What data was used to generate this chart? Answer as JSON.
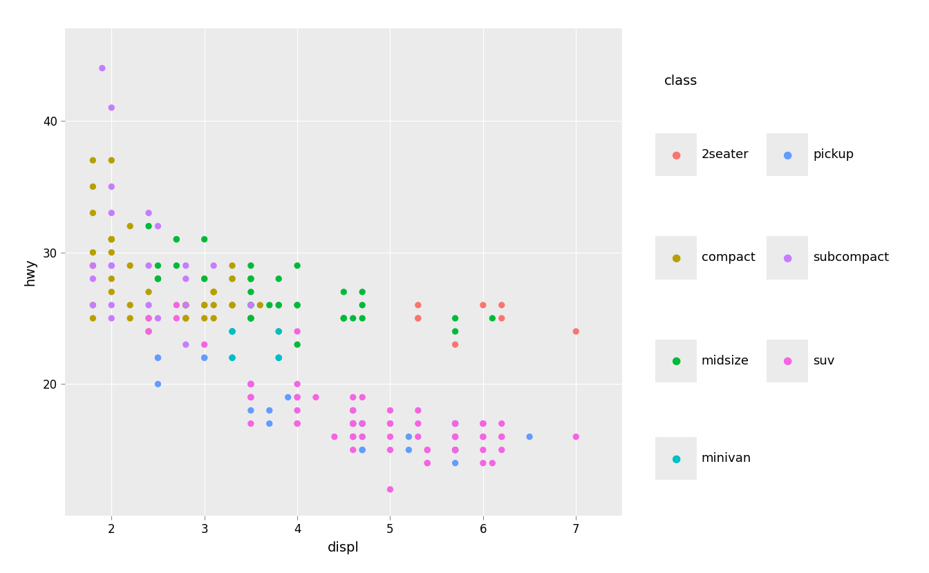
{
  "title": "class",
  "xlabel": "displ",
  "ylabel": "hwy",
  "background_color": "#EBEBEB",
  "grid_color": "#FFFFFF",
  "colors": {
    "2seater": "#F8766D",
    "compact": "#B79F00",
    "midsize": "#00BA38",
    "minivan": "#00BFC4",
    "pickup": "#619CFF",
    "subcompact": "#C77CFF",
    "suv": "#F564E3"
  },
  "data": [
    {
      "displ": 1.8,
      "hwy": 29,
      "class": "compact"
    },
    {
      "displ": 1.8,
      "hwy": 29,
      "class": "compact"
    },
    {
      "displ": 2.0,
      "hwy": 31,
      "class": "compact"
    },
    {
      "displ": 2.0,
      "hwy": 30,
      "class": "compact"
    },
    {
      "displ": 2.8,
      "hwy": 26,
      "class": "compact"
    },
    {
      "displ": 2.8,
      "hwy": 26,
      "class": "compact"
    },
    {
      "displ": 3.1,
      "hwy": 27,
      "class": "compact"
    },
    {
      "displ": 1.8,
      "hwy": 26,
      "class": "compact"
    },
    {
      "displ": 1.8,
      "hwy": 25,
      "class": "compact"
    },
    {
      "displ": 2.0,
      "hwy": 28,
      "class": "compact"
    },
    {
      "displ": 2.0,
      "hwy": 27,
      "class": "compact"
    },
    {
      "displ": 2.8,
      "hwy": 25,
      "class": "compact"
    },
    {
      "displ": 2.8,
      "hwy": 25,
      "class": "compact"
    },
    {
      "displ": 3.1,
      "hwy": 25,
      "class": "compact"
    },
    {
      "displ": 3.1,
      "hwy": 27,
      "class": "compact"
    },
    {
      "displ": 2.2,
      "hwy": 32,
      "class": "compact"
    },
    {
      "displ": 2.2,
      "hwy": 29,
      "class": "compact"
    },
    {
      "displ": 2.4,
      "hwy": 24,
      "class": "compact"
    },
    {
      "displ": 2.4,
      "hwy": 24,
      "class": "compact"
    },
    {
      "displ": 3.0,
      "hwy": 26,
      "class": "compact"
    },
    {
      "displ": 3.0,
      "hwy": 26,
      "class": "compact"
    },
    {
      "displ": 3.3,
      "hwy": 28,
      "class": "compact"
    },
    {
      "displ": 3.3,
      "hwy": 26,
      "class": "compact"
    },
    {
      "displ": 3.3,
      "hwy": 29,
      "class": "compact"
    },
    {
      "displ": 3.3,
      "hwy": 28,
      "class": "compact"
    },
    {
      "displ": 3.6,
      "hwy": 26,
      "class": "compact"
    },
    {
      "displ": 1.8,
      "hwy": 37,
      "class": "compact"
    },
    {
      "displ": 1.8,
      "hwy": 35,
      "class": "compact"
    },
    {
      "displ": 2.0,
      "hwy": 37,
      "class": "compact"
    },
    {
      "displ": 2.0,
      "hwy": 31,
      "class": "compact"
    },
    {
      "displ": 2.8,
      "hwy": 26,
      "class": "compact"
    },
    {
      "displ": 2.8,
      "hwy": 26,
      "class": "compact"
    },
    {
      "displ": 3.1,
      "hwy": 26,
      "class": "compact"
    },
    {
      "displ": 1.8,
      "hwy": 33,
      "class": "compact"
    },
    {
      "displ": 1.8,
      "hwy": 30,
      "class": "compact"
    },
    {
      "displ": 2.0,
      "hwy": 31,
      "class": "compact"
    },
    {
      "displ": 2.0,
      "hwy": 31,
      "class": "compact"
    },
    {
      "displ": 2.8,
      "hwy": 26,
      "class": "compact"
    },
    {
      "displ": 2.8,
      "hwy": 25,
      "class": "compact"
    },
    {
      "displ": 3.1,
      "hwy": 27,
      "class": "compact"
    },
    {
      "displ": 2.2,
      "hwy": 26,
      "class": "compact"
    },
    {
      "displ": 2.2,
      "hwy": 25,
      "class": "compact"
    },
    {
      "displ": 2.4,
      "hwy": 25,
      "class": "compact"
    },
    {
      "displ": 2.4,
      "hwy": 27,
      "class": "compact"
    },
    {
      "displ": 3.0,
      "hwy": 25,
      "class": "compact"
    },
    {
      "displ": 3.0,
      "hwy": 28,
      "class": "compact"
    },
    {
      "displ": 3.3,
      "hwy": 26,
      "class": "compact"
    },
    {
      "displ": 3.3,
      "hwy": 26,
      "class": "compact"
    },
    {
      "displ": 2.4,
      "hwy": 32,
      "class": "midsize"
    },
    {
      "displ": 3.0,
      "hwy": 31,
      "class": "midsize"
    },
    {
      "displ": 3.5,
      "hwy": 28,
      "class": "midsize"
    },
    {
      "displ": 3.5,
      "hwy": 26,
      "class": "midsize"
    },
    {
      "displ": 3.5,
      "hwy": 29,
      "class": "midsize"
    },
    {
      "displ": 3.5,
      "hwy": 27,
      "class": "midsize"
    },
    {
      "displ": 3.5,
      "hwy": 28,
      "class": "midsize"
    },
    {
      "displ": 3.5,
      "hwy": 28,
      "class": "midsize"
    },
    {
      "displ": 3.8,
      "hwy": 28,
      "class": "midsize"
    },
    {
      "displ": 3.8,
      "hwy": 26,
      "class": "midsize"
    },
    {
      "displ": 3.8,
      "hwy": 26,
      "class": "midsize"
    },
    {
      "displ": 4.0,
      "hwy": 29,
      "class": "midsize"
    },
    {
      "displ": 3.5,
      "hwy": 25,
      "class": "midsize"
    },
    {
      "displ": 3.5,
      "hwy": 25,
      "class": "midsize"
    },
    {
      "displ": 3.8,
      "hwy": 24,
      "class": "midsize"
    },
    {
      "displ": 4.0,
      "hwy": 26,
      "class": "midsize"
    },
    {
      "displ": 4.0,
      "hwy": 23,
      "class": "midsize"
    },
    {
      "displ": 2.5,
      "hwy": 28,
      "class": "midsize"
    },
    {
      "displ": 2.5,
      "hwy": 28,
      "class": "midsize"
    },
    {
      "displ": 3.5,
      "hwy": 26,
      "class": "midsize"
    },
    {
      "displ": 3.5,
      "hwy": 25,
      "class": "midsize"
    },
    {
      "displ": 4.6,
      "hwy": 25,
      "class": "midsize"
    },
    {
      "displ": 5.7,
      "hwy": 24,
      "class": "midsize"
    },
    {
      "displ": 2.7,
      "hwy": 29,
      "class": "midsize"
    },
    {
      "displ": 2.7,
      "hwy": 31,
      "class": "midsize"
    },
    {
      "displ": 2.7,
      "hwy": 31,
      "class": "midsize"
    },
    {
      "displ": 3.0,
      "hwy": 28,
      "class": "midsize"
    },
    {
      "displ": 3.7,
      "hwy": 26,
      "class": "midsize"
    },
    {
      "displ": 4.0,
      "hwy": 26,
      "class": "midsize"
    },
    {
      "displ": 4.7,
      "hwy": 25,
      "class": "midsize"
    },
    {
      "displ": 4.7,
      "hwy": 26,
      "class": "midsize"
    },
    {
      "displ": 4.7,
      "hwy": 27,
      "class": "midsize"
    },
    {
      "displ": 5.7,
      "hwy": 25,
      "class": "midsize"
    },
    {
      "displ": 6.1,
      "hwy": 25,
      "class": "midsize"
    },
    {
      "displ": 2.5,
      "hwy": 29,
      "class": "midsize"
    },
    {
      "displ": 2.5,
      "hwy": 28,
      "class": "midsize"
    },
    {
      "displ": 3.5,
      "hwy": 25,
      "class": "midsize"
    },
    {
      "displ": 3.5,
      "hwy": 26,
      "class": "midsize"
    },
    {
      "displ": 4.5,
      "hwy": 25,
      "class": "midsize"
    },
    {
      "displ": 4.5,
      "hwy": 25,
      "class": "midsize"
    },
    {
      "displ": 4.5,
      "hwy": 27,
      "class": "midsize"
    },
    {
      "displ": 4.5,
      "hwy": 25,
      "class": "midsize"
    },
    {
      "displ": 3.3,
      "hwy": 24,
      "class": "minivan"
    },
    {
      "displ": 3.3,
      "hwy": 24,
      "class": "minivan"
    },
    {
      "displ": 3.3,
      "hwy": 22,
      "class": "minivan"
    },
    {
      "displ": 3.3,
      "hwy": 22,
      "class": "minivan"
    },
    {
      "displ": 3.8,
      "hwy": 22,
      "class": "minivan"
    },
    {
      "displ": 3.8,
      "hwy": 24,
      "class": "minivan"
    },
    {
      "displ": 3.8,
      "hwy": 22,
      "class": "minivan"
    },
    {
      "displ": 3.3,
      "hwy": 24,
      "class": "minivan"
    },
    {
      "displ": 3.3,
      "hwy": 24,
      "class": "minivan"
    },
    {
      "displ": 3.3,
      "hwy": 22,
      "class": "minivan"
    },
    {
      "displ": 3.8,
      "hwy": 22,
      "class": "minivan"
    },
    {
      "displ": 3.7,
      "hwy": 18,
      "class": "pickup"
    },
    {
      "displ": 3.7,
      "hwy": 17,
      "class": "pickup"
    },
    {
      "displ": 3.9,
      "hwy": 19,
      "class": "pickup"
    },
    {
      "displ": 4.7,
      "hwy": 17,
      "class": "pickup"
    },
    {
      "displ": 4.7,
      "hwy": 16,
      "class": "pickup"
    },
    {
      "displ": 4.7,
      "hwy": 17,
      "class": "pickup"
    },
    {
      "displ": 4.7,
      "hwy": 17,
      "class": "pickup"
    },
    {
      "displ": 5.7,
      "hwy": 16,
      "class": "pickup"
    },
    {
      "displ": 5.7,
      "hwy": 15,
      "class": "pickup"
    },
    {
      "displ": 5.7,
      "hwy": 15,
      "class": "pickup"
    },
    {
      "displ": 4.7,
      "hwy": 15,
      "class": "pickup"
    },
    {
      "displ": 4.7,
      "hwy": 15,
      "class": "pickup"
    },
    {
      "displ": 5.2,
      "hwy": 16,
      "class": "pickup"
    },
    {
      "displ": 5.2,
      "hwy": 15,
      "class": "pickup"
    },
    {
      "displ": 5.7,
      "hwy": 15,
      "class": "pickup"
    },
    {
      "displ": 5.7,
      "hwy": 14,
      "class": "pickup"
    },
    {
      "displ": 5.7,
      "hwy": 17,
      "class": "pickup"
    },
    {
      "displ": 5.7,
      "hwy": 17,
      "class": "pickup"
    },
    {
      "displ": 2.5,
      "hwy": 20,
      "class": "pickup"
    },
    {
      "displ": 2.5,
      "hwy": 22,
      "class": "pickup"
    },
    {
      "displ": 2.5,
      "hwy": 22,
      "class": "pickup"
    },
    {
      "displ": 3.0,
      "hwy": 22,
      "class": "pickup"
    },
    {
      "displ": 3.0,
      "hwy": 22,
      "class": "pickup"
    },
    {
      "displ": 3.5,
      "hwy": 19,
      "class": "pickup"
    },
    {
      "displ": 3.5,
      "hwy": 18,
      "class": "pickup"
    },
    {
      "displ": 3.5,
      "hwy": 20,
      "class": "pickup"
    },
    {
      "displ": 3.5,
      "hwy": 20,
      "class": "pickup"
    },
    {
      "displ": 4.6,
      "hwy": 17,
      "class": "pickup"
    },
    {
      "displ": 4.6,
      "hwy": 16,
      "class": "pickup"
    },
    {
      "displ": 4.6,
      "hwy": 17,
      "class": "pickup"
    },
    {
      "displ": 4.6,
      "hwy": 17,
      "class": "pickup"
    },
    {
      "displ": 5.7,
      "hwy": 15,
      "class": "pickup"
    },
    {
      "displ": 5.7,
      "hwy": 17,
      "class": "pickup"
    },
    {
      "displ": 6.5,
      "hwy": 16,
      "class": "pickup"
    },
    {
      "displ": 1.8,
      "hwy": 29,
      "class": "subcompact"
    },
    {
      "displ": 1.8,
      "hwy": 26,
      "class": "subcompact"
    },
    {
      "displ": 2.0,
      "hwy": 35,
      "class": "subcompact"
    },
    {
      "displ": 2.0,
      "hwy": 29,
      "class": "subcompact"
    },
    {
      "displ": 2.8,
      "hwy": 29,
      "class": "subcompact"
    },
    {
      "displ": 2.8,
      "hwy": 28,
      "class": "subcompact"
    },
    {
      "displ": 3.1,
      "hwy": 29,
      "class": "subcompact"
    },
    {
      "displ": 1.8,
      "hwy": 28,
      "class": "subcompact"
    },
    {
      "displ": 1.9,
      "hwy": 44,
      "class": "subcompact"
    },
    {
      "displ": 2.0,
      "hwy": 29,
      "class": "subcompact"
    },
    {
      "displ": 2.0,
      "hwy": 26,
      "class": "subcompact"
    },
    {
      "displ": 2.0,
      "hwy": 25,
      "class": "subcompact"
    },
    {
      "displ": 2.0,
      "hwy": 41,
      "class": "subcompact"
    },
    {
      "displ": 2.0,
      "hwy": 33,
      "class": "subcompact"
    },
    {
      "displ": 2.4,
      "hwy": 33,
      "class": "subcompact"
    },
    {
      "displ": 2.4,
      "hwy": 29,
      "class": "subcompact"
    },
    {
      "displ": 2.4,
      "hwy": 26,
      "class": "subcompact"
    },
    {
      "displ": 2.5,
      "hwy": 25,
      "class": "subcompact"
    },
    {
      "displ": 2.5,
      "hwy": 32,
      "class": "subcompact"
    },
    {
      "displ": 2.8,
      "hwy": 26,
      "class": "subcompact"
    },
    {
      "displ": 2.8,
      "hwy": 23,
      "class": "subcompact"
    },
    {
      "displ": 3.5,
      "hwy": 26,
      "class": "subcompact"
    },
    {
      "displ": 5.3,
      "hwy": 26,
      "class": "2seater"
    },
    {
      "displ": 5.3,
      "hwy": 25,
      "class": "2seater"
    },
    {
      "displ": 5.3,
      "hwy": 25,
      "class": "2seater"
    },
    {
      "displ": 5.7,
      "hwy": 23,
      "class": "2seater"
    },
    {
      "displ": 6.0,
      "hwy": 26,
      "class": "2seater"
    },
    {
      "displ": 6.2,
      "hwy": 25,
      "class": "2seater"
    },
    {
      "displ": 6.2,
      "hwy": 26,
      "class": "2seater"
    },
    {
      "displ": 7.0,
      "hwy": 24,
      "class": "2seater"
    },
    {
      "displ": 2.4,
      "hwy": 25,
      "class": "suv"
    },
    {
      "displ": 2.4,
      "hwy": 24,
      "class": "suv"
    },
    {
      "displ": 3.0,
      "hwy": 23,
      "class": "suv"
    },
    {
      "displ": 3.5,
      "hwy": 20,
      "class": "suv"
    },
    {
      "displ": 3.5,
      "hwy": 20,
      "class": "suv"
    },
    {
      "displ": 3.5,
      "hwy": 19,
      "class": "suv"
    },
    {
      "displ": 3.5,
      "hwy": 17,
      "class": "suv"
    },
    {
      "displ": 4.0,
      "hwy": 17,
      "class": "suv"
    },
    {
      "displ": 4.0,
      "hwy": 17,
      "class": "suv"
    },
    {
      "displ": 4.6,
      "hwy": 19,
      "class": "suv"
    },
    {
      "displ": 4.6,
      "hwy": 18,
      "class": "suv"
    },
    {
      "displ": 4.6,
      "hwy": 17,
      "class": "suv"
    },
    {
      "displ": 4.6,
      "hwy": 17,
      "class": "suv"
    },
    {
      "displ": 4.6,
      "hwy": 16,
      "class": "suv"
    },
    {
      "displ": 4.6,
      "hwy": 15,
      "class": "suv"
    },
    {
      "displ": 4.6,
      "hwy": 17,
      "class": "suv"
    },
    {
      "displ": 5.4,
      "hwy": 15,
      "class": "suv"
    },
    {
      "displ": 5.4,
      "hwy": 15,
      "class": "suv"
    },
    {
      "displ": 2.7,
      "hwy": 26,
      "class": "suv"
    },
    {
      "displ": 2.7,
      "hwy": 25,
      "class": "suv"
    },
    {
      "displ": 3.5,
      "hwy": 19,
      "class": "suv"
    },
    {
      "displ": 4.0,
      "hwy": 18,
      "class": "suv"
    },
    {
      "displ": 4.0,
      "hwy": 20,
      "class": "suv"
    },
    {
      "displ": 4.7,
      "hwy": 19,
      "class": "suv"
    },
    {
      "displ": 4.7,
      "hwy": 17,
      "class": "suv"
    },
    {
      "displ": 4.7,
      "hwy": 16,
      "class": "suv"
    },
    {
      "displ": 5.7,
      "hwy": 15,
      "class": "suv"
    },
    {
      "displ": 5.7,
      "hwy": 15,
      "class": "suv"
    },
    {
      "displ": 5.7,
      "hwy": 17,
      "class": "suv"
    },
    {
      "displ": 6.1,
      "hwy": 14,
      "class": "suv"
    },
    {
      "displ": 4.0,
      "hwy": 19,
      "class": "suv"
    },
    {
      "displ": 4.2,
      "hwy": 19,
      "class": "suv"
    },
    {
      "displ": 4.4,
      "hwy": 16,
      "class": "suv"
    },
    {
      "displ": 4.6,
      "hwy": 16,
      "class": "suv"
    },
    {
      "displ": 5.4,
      "hwy": 14,
      "class": "suv"
    },
    {
      "displ": 5.4,
      "hwy": 14,
      "class": "suv"
    },
    {
      "displ": 4.0,
      "hwy": 24,
      "class": "suv"
    },
    {
      "displ": 4.0,
      "hwy": 19,
      "class": "suv"
    },
    {
      "displ": 4.6,
      "hwy": 18,
      "class": "suv"
    },
    {
      "displ": 5.0,
      "hwy": 18,
      "class": "suv"
    },
    {
      "displ": 5.0,
      "hwy": 17,
      "class": "suv"
    },
    {
      "displ": 5.0,
      "hwy": 15,
      "class": "suv"
    },
    {
      "displ": 5.0,
      "hwy": 16,
      "class": "suv"
    },
    {
      "displ": 5.0,
      "hwy": 12,
      "class": "suv"
    },
    {
      "displ": 5.0,
      "hwy": 17,
      "class": "suv"
    },
    {
      "displ": 5.7,
      "hwy": 16,
      "class": "suv"
    },
    {
      "displ": 5.7,
      "hwy": 17,
      "class": "suv"
    },
    {
      "displ": 6.2,
      "hwy": 16,
      "class": "suv"
    },
    {
      "displ": 6.2,
      "hwy": 15,
      "class": "suv"
    },
    {
      "displ": 7.0,
      "hwy": 16,
      "class": "suv"
    },
    {
      "displ": 5.3,
      "hwy": 16,
      "class": "suv"
    },
    {
      "displ": 5.3,
      "hwy": 17,
      "class": "suv"
    },
    {
      "displ": 5.3,
      "hwy": 18,
      "class": "suv"
    },
    {
      "displ": 5.7,
      "hwy": 16,
      "class": "suv"
    },
    {
      "displ": 6.0,
      "hwy": 17,
      "class": "suv"
    },
    {
      "displ": 6.0,
      "hwy": 15,
      "class": "suv"
    },
    {
      "displ": 6.0,
      "hwy": 17,
      "class": "suv"
    },
    {
      "displ": 6.0,
      "hwy": 16,
      "class": "suv"
    },
    {
      "displ": 6.0,
      "hwy": 17,
      "class": "suv"
    },
    {
      "displ": 6.0,
      "hwy": 16,
      "class": "suv"
    },
    {
      "displ": 6.0,
      "hwy": 14,
      "class": "suv"
    },
    {
      "displ": 6.2,
      "hwy": 17,
      "class": "suv"
    },
    {
      "displ": 6.2,
      "hwy": 16,
      "class": "suv"
    }
  ],
  "legend_order": [
    "2seater",
    "pickup",
    "compact",
    "subcompact",
    "midsize",
    "suv",
    "minivan"
  ],
  "xlim": [
    1.5,
    7.5
  ],
  "ylim": [
    10,
    47
  ],
  "xticks": [
    2,
    3,
    4,
    5,
    6,
    7
  ],
  "yticks": [
    20,
    30,
    40
  ],
  "marker_size": 45,
  "title_fontsize": 14,
  "axis_fontsize": 14,
  "tick_fontsize": 12
}
